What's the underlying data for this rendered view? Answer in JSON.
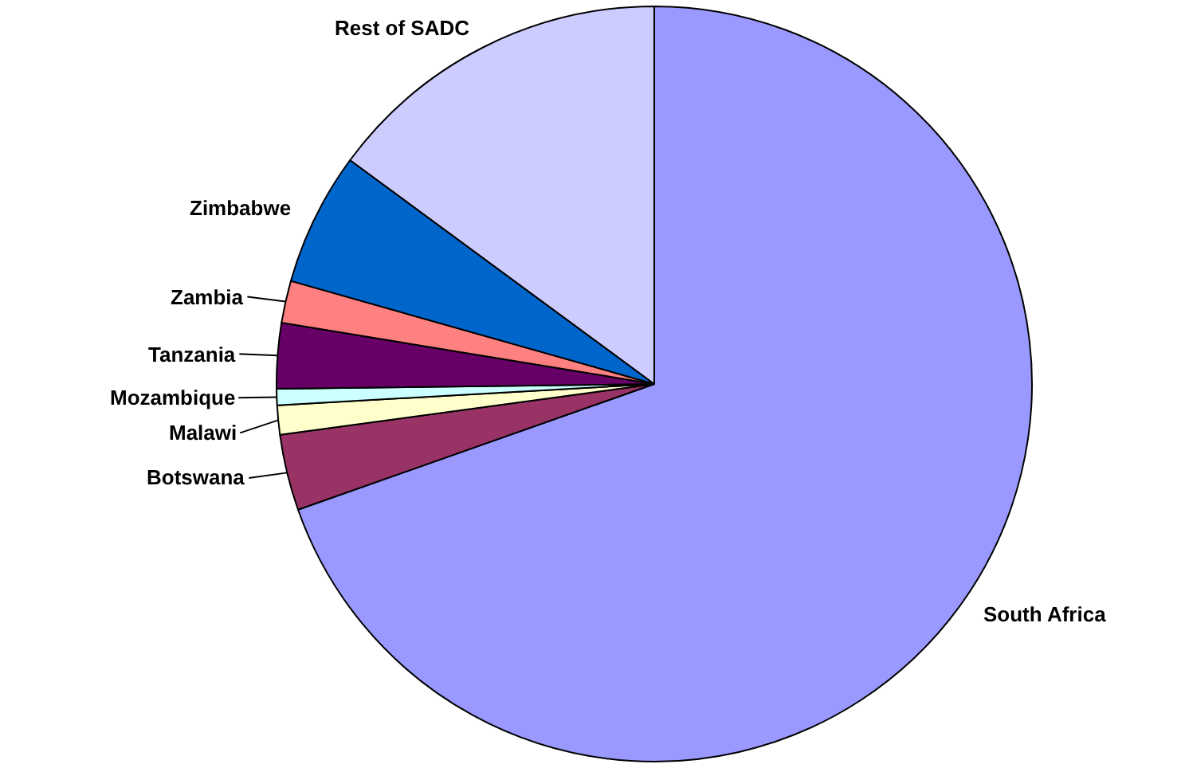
{
  "chart_data": {
    "type": "pie",
    "categories": [
      "South Africa",
      "Botswana",
      "Malawi",
      "Mozambique",
      "Tanzania",
      "Zambia",
      "Zimbabwe",
      "Rest of SADC"
    ],
    "values": [
      69.6,
      3.25,
      1.25,
      0.7,
      2.8,
      1.8,
      5.7,
      14.9
    ],
    "colors": [
      "#9999ff",
      "#993366",
      "#ffffcc",
      "#ccffff",
      "#660066",
      "#ff8080",
      "#0066cc",
      "#ccccff"
    ],
    "legend": false
  }
}
